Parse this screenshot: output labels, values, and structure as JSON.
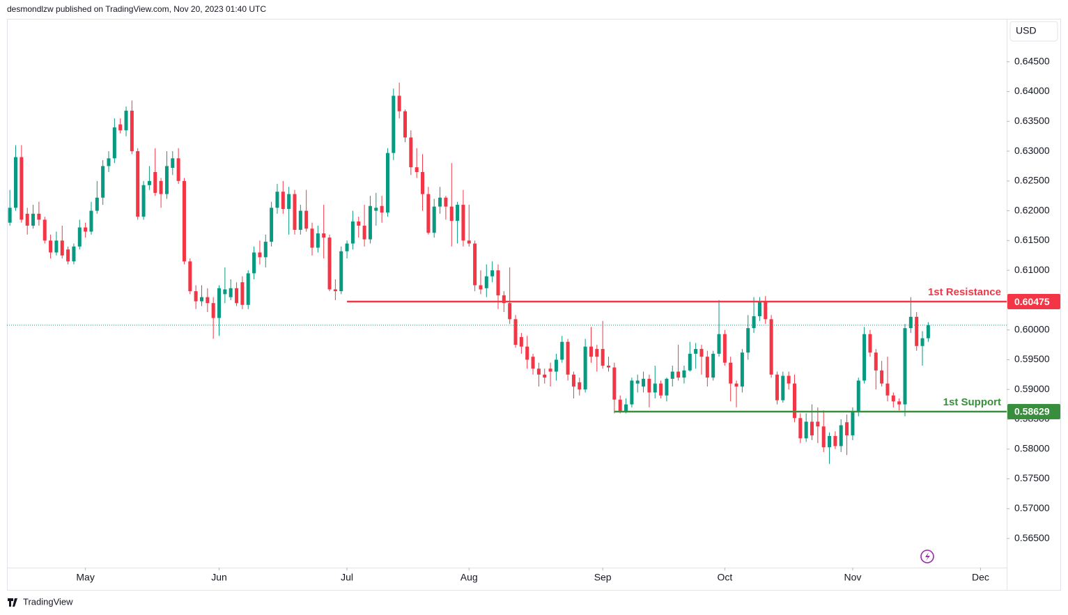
{
  "header": {
    "text": "desmondlzw published on TradingView.com, Nov 20, 2023 01:40 UTC"
  },
  "footer": {
    "brand": "TradingView"
  },
  "chart_data": {
    "type": "candlestick",
    "currency": "USD",
    "up_color": "#089981",
    "down_color": "#f23645",
    "xlim": [
      -0.5,
      171.5
    ],
    "xticks": [
      {
        "value": 13,
        "label": "May"
      },
      {
        "value": 36,
        "label": "Jun"
      },
      {
        "value": 58,
        "label": "Jul"
      },
      {
        "value": 79,
        "label": "Aug"
      },
      {
        "value": 102,
        "label": "Sep"
      },
      {
        "value": 123,
        "label": "Oct"
      },
      {
        "value": 145,
        "label": "Nov"
      },
      {
        "value": 167,
        "label": "Dec"
      }
    ],
    "ylim": [
      0.5601,
      0.6521
    ],
    "yticks": [
      {
        "value": 0.565,
        "label": "0.56500"
      },
      {
        "value": 0.57,
        "label": "0.57000"
      },
      {
        "value": 0.575,
        "label": "0.57500"
      },
      {
        "value": 0.58,
        "label": "0.58000"
      },
      {
        "value": 0.585,
        "label": "0.58500"
      },
      {
        "value": 0.59,
        "label": "0.59000"
      },
      {
        "value": 0.595,
        "label": "0.59500"
      },
      {
        "value": 0.6,
        "label": "0.60000"
      },
      {
        "value": 0.605,
        "label": "0.60500"
      },
      {
        "value": 0.61,
        "label": "0.61000"
      },
      {
        "value": 0.615,
        "label": "0.61500"
      },
      {
        "value": 0.62,
        "label": "0.62000"
      },
      {
        "value": 0.625,
        "label": "0.62500"
      },
      {
        "value": 0.63,
        "label": "0.63000"
      },
      {
        "value": 0.635,
        "label": "0.63500"
      },
      {
        "value": 0.64,
        "label": "0.64000"
      },
      {
        "value": 0.645,
        "label": "0.64500"
      }
    ],
    "levels": [
      {
        "name": "1st Resistance",
        "value": 0.60475,
        "start": 58,
        "color": "#f23645"
      },
      {
        "name": "1st Support",
        "value": 0.58629,
        "start": 104,
        "color": "#388e3c"
      }
    ],
    "ohlc": [
      [
        0.618,
        0.6235,
        0.6175,
        0.6205
      ],
      [
        0.6205,
        0.631,
        0.62,
        0.629
      ],
      [
        0.629,
        0.631,
        0.618,
        0.6185
      ],
      [
        0.6195,
        0.6205,
        0.616,
        0.6175
      ],
      [
        0.6175,
        0.621,
        0.617,
        0.6195
      ],
      [
        0.6195,
        0.6215,
        0.6175,
        0.6185
      ],
      [
        0.6185,
        0.619,
        0.6145,
        0.615
      ],
      [
        0.615,
        0.616,
        0.612,
        0.613
      ],
      [
        0.613,
        0.6165,
        0.6125,
        0.615
      ],
      [
        0.615,
        0.6175,
        0.612,
        0.6125
      ],
      [
        0.6135,
        0.614,
        0.611,
        0.6115
      ],
      [
        0.6115,
        0.6145,
        0.611,
        0.614
      ],
      [
        0.614,
        0.6185,
        0.6135,
        0.6172
      ],
      [
        0.6172,
        0.618,
        0.6155,
        0.6165
      ],
      [
        0.6165,
        0.6215,
        0.616,
        0.62
      ],
      [
        0.62,
        0.625,
        0.6195,
        0.6222
      ],
      [
        0.6222,
        0.6285,
        0.621,
        0.6275
      ],
      [
        0.6275,
        0.63,
        0.6265,
        0.6288
      ],
      [
        0.6288,
        0.6355,
        0.628,
        0.634
      ],
      [
        0.6345,
        0.6355,
        0.633,
        0.6335
      ],
      [
        0.6335,
        0.6375,
        0.6325,
        0.6368
      ],
      [
        0.6368,
        0.6385,
        0.6295,
        0.63
      ],
      [
        0.63,
        0.6305,
        0.6185,
        0.619
      ],
      [
        0.619,
        0.625,
        0.6185,
        0.6243
      ],
      [
        0.6243,
        0.6275,
        0.6235,
        0.625
      ],
      [
        0.6265,
        0.6305,
        0.6225,
        0.623
      ],
      [
        0.625,
        0.6255,
        0.6205,
        0.6228
      ],
      [
        0.6228,
        0.63,
        0.622,
        0.6275
      ],
      [
        0.6272,
        0.63,
        0.626,
        0.6288
      ],
      [
        0.6288,
        0.6305,
        0.6245,
        0.625
      ],
      [
        0.625,
        0.6255,
        0.611,
        0.6115
      ],
      [
        0.6115,
        0.612,
        0.606,
        0.6065
      ],
      [
        0.6065,
        0.6075,
        0.6035,
        0.6048
      ],
      [
        0.6048,
        0.6075,
        0.604,
        0.6055
      ],
      [
        0.6055,
        0.607,
        0.603,
        0.6045
      ],
      [
        0.6045,
        0.6055,
        0.5985,
        0.602
      ],
      [
        0.602,
        0.6075,
        0.599,
        0.607
      ],
      [
        0.606,
        0.6105,
        0.6045,
        0.6068
      ],
      [
        0.6055,
        0.6085,
        0.605,
        0.607
      ],
      [
        0.607,
        0.608,
        0.604,
        0.6045
      ],
      [
        0.608,
        0.609,
        0.6035,
        0.6042
      ],
      [
        0.6042,
        0.61,
        0.6035,
        0.6095
      ],
      [
        0.6095,
        0.614,
        0.6085,
        0.613
      ],
      [
        0.613,
        0.615,
        0.611,
        0.6122
      ],
      [
        0.6122,
        0.616,
        0.6105,
        0.6148
      ],
      [
        0.6148,
        0.6215,
        0.614,
        0.6205
      ],
      [
        0.6205,
        0.6245,
        0.6195,
        0.6232
      ],
      [
        0.6232,
        0.625,
        0.6195,
        0.6203
      ],
      [
        0.6203,
        0.624,
        0.616,
        0.6228
      ],
      [
        0.6228,
        0.6235,
        0.616,
        0.6168
      ],
      [
        0.6168,
        0.621,
        0.616,
        0.62
      ],
      [
        0.62,
        0.6235,
        0.6165,
        0.617
      ],
      [
        0.617,
        0.618,
        0.6125,
        0.6138
      ],
      [
        0.6138,
        0.6175,
        0.613,
        0.6162
      ],
      [
        0.6162,
        0.621,
        0.612,
        0.6155
      ],
      [
        0.6155,
        0.616,
        0.6065,
        0.6068
      ],
      [
        0.6068,
        0.6085,
        0.605,
        0.6065
      ],
      [
        0.6065,
        0.614,
        0.606,
        0.6132
      ],
      [
        0.6132,
        0.615,
        0.612,
        0.6145
      ],
      [
        0.6145,
        0.62,
        0.6135,
        0.6182
      ],
      [
        0.6182,
        0.619,
        0.6155,
        0.6175
      ],
      [
        0.6175,
        0.621,
        0.614,
        0.6152
      ],
      [
        0.6152,
        0.6225,
        0.6145,
        0.6208
      ],
      [
        0.62,
        0.623,
        0.6175,
        0.6205
      ],
      [
        0.6208,
        0.6225,
        0.618,
        0.6197
      ],
      [
        0.6197,
        0.6305,
        0.619,
        0.6297
      ],
      [
        0.6297,
        0.6405,
        0.6285,
        0.6393
      ],
      [
        0.6393,
        0.6415,
        0.6355,
        0.6367
      ],
      [
        0.6367,
        0.637,
        0.6315,
        0.6323
      ],
      [
        0.6323,
        0.6335,
        0.626,
        0.6273
      ],
      [
        0.6273,
        0.6305,
        0.6255,
        0.6265
      ],
      [
        0.6265,
        0.6295,
        0.62,
        0.6228
      ],
      [
        0.6228,
        0.624,
        0.616,
        0.6163
      ],
      [
        0.6163,
        0.622,
        0.6155,
        0.6207
      ],
      [
        0.6207,
        0.624,
        0.6195,
        0.6222
      ],
      [
        0.6222,
        0.6225,
        0.6185,
        0.6207
      ],
      [
        0.6207,
        0.628,
        0.614,
        0.6183
      ],
      [
        0.6183,
        0.6215,
        0.6145,
        0.621
      ],
      [
        0.621,
        0.6235,
        0.614,
        0.615
      ],
      [
        0.615,
        0.621,
        0.614,
        0.6145
      ],
      [
        0.6145,
        0.615,
        0.6065,
        0.6075
      ],
      [
        0.6075,
        0.61,
        0.606,
        0.6068
      ],
      [
        0.607,
        0.611,
        0.6055,
        0.609
      ],
      [
        0.609,
        0.6115,
        0.608,
        0.61
      ],
      [
        0.61,
        0.611,
        0.6035,
        0.6058
      ],
      [
        0.6058,
        0.6065,
        0.603,
        0.6045
      ],
      [
        0.6045,
        0.6105,
        0.601,
        0.6018
      ],
      [
        0.6018,
        0.6025,
        0.597,
        0.5975
      ],
      [
        0.5988,
        0.5995,
        0.596,
        0.5972
      ],
      [
        0.5972,
        0.599,
        0.5935,
        0.595
      ],
      [
        0.5955,
        0.596,
        0.5925,
        0.5935
      ],
      [
        0.5935,
        0.5945,
        0.5905,
        0.5925
      ],
      [
        0.5925,
        0.5935,
        0.591,
        0.592
      ],
      [
        0.5935,
        0.5945,
        0.5905,
        0.593
      ],
      [
        0.593,
        0.596,
        0.5915,
        0.595
      ],
      [
        0.595,
        0.599,
        0.5945,
        0.598
      ],
      [
        0.598,
        0.5985,
        0.5915,
        0.5925
      ],
      [
        0.5925,
        0.593,
        0.5885,
        0.5905
      ],
      [
        0.5912,
        0.592,
        0.589,
        0.59
      ],
      [
        0.59,
        0.5985,
        0.5895,
        0.5972
      ],
      [
        0.5972,
        0.6005,
        0.5945,
        0.5955
      ],
      [
        0.5968,
        0.5975,
        0.593,
        0.5955
      ],
      [
        0.5968,
        0.6015,
        0.5935,
        0.594
      ],
      [
        0.594,
        0.5955,
        0.593,
        0.5937
      ],
      [
        0.5937,
        0.5945,
        0.586,
        0.5883
      ],
      [
        0.5883,
        0.589,
        0.586,
        0.5862
      ],
      [
        0.5862,
        0.5885,
        0.586,
        0.5875
      ],
      [
        0.5875,
        0.592,
        0.587,
        0.5915
      ],
      [
        0.591,
        0.5925,
        0.5895,
        0.5915
      ],
      [
        0.5905,
        0.593,
        0.5895,
        0.5918
      ],
      [
        0.5918,
        0.5925,
        0.587,
        0.5895
      ],
      [
        0.5895,
        0.594,
        0.5885,
        0.591
      ],
      [
        0.591,
        0.5915,
        0.5885,
        0.589
      ],
      [
        0.589,
        0.592,
        0.588,
        0.5918
      ],
      [
        0.5918,
        0.594,
        0.5905,
        0.593
      ],
      [
        0.593,
        0.5975,
        0.5915,
        0.592
      ],
      [
        0.592,
        0.594,
        0.591,
        0.5932
      ],
      [
        0.5932,
        0.598,
        0.593,
        0.596
      ],
      [
        0.596,
        0.5978,
        0.5935,
        0.5968
      ],
      [
        0.5968,
        0.5975,
        0.5925,
        0.5955
      ],
      [
        0.5955,
        0.5965,
        0.5905,
        0.592
      ],
      [
        0.592,
        0.5965,
        0.5915,
        0.596
      ],
      [
        0.596,
        0.605,
        0.5955,
        0.5993
      ],
      [
        0.5993,
        0.6,
        0.594,
        0.5945
      ],
      [
        0.5945,
        0.5955,
        0.588,
        0.591
      ],
      [
        0.591,
        0.5915,
        0.587,
        0.5905
      ],
      [
        0.5905,
        0.5968,
        0.5895,
        0.5962
      ],
      [
        0.5962,
        0.6025,
        0.595,
        0.6003
      ],
      [
        0.6003,
        0.6055,
        0.5995,
        0.6023
      ],
      [
        0.6023,
        0.6055,
        0.6015,
        0.6047
      ],
      [
        0.6047,
        0.6057,
        0.601,
        0.6018
      ],
      [
        0.6018,
        0.6025,
        0.592,
        0.5925
      ],
      [
        0.5925,
        0.593,
        0.5875,
        0.5882
      ],
      [
        0.5882,
        0.593,
        0.5878,
        0.5923
      ],
      [
        0.5923,
        0.593,
        0.59,
        0.591
      ],
      [
        0.591,
        0.5925,
        0.5845,
        0.5852
      ],
      [
        0.5852,
        0.586,
        0.581,
        0.5818
      ],
      [
        0.5818,
        0.586,
        0.5812,
        0.5846
      ],
      [
        0.5846,
        0.5875,
        0.5815,
        0.5823
      ],
      [
        0.5846,
        0.587,
        0.581,
        0.5838
      ],
      [
        0.5838,
        0.5865,
        0.5795,
        0.5803
      ],
      [
        0.5803,
        0.5828,
        0.5775,
        0.5822
      ],
      [
        0.5822,
        0.583,
        0.58,
        0.5805
      ],
      [
        0.5805,
        0.585,
        0.5795,
        0.584
      ],
      [
        0.5845,
        0.5858,
        0.579,
        0.5823
      ],
      [
        0.5823,
        0.587,
        0.5815,
        0.5863
      ],
      [
        0.5863,
        0.592,
        0.5855,
        0.5915
      ],
      [
        0.5915,
        0.6005,
        0.591,
        0.5993
      ],
      [
        0.5993,
        0.6,
        0.5955,
        0.5962
      ],
      [
        0.5962,
        0.5968,
        0.59,
        0.5932
      ],
      [
        0.5932,
        0.5948,
        0.5905,
        0.591
      ],
      [
        0.591,
        0.5955,
        0.588,
        0.589
      ],
      [
        0.589,
        0.5895,
        0.587,
        0.588
      ],
      [
        0.588,
        0.5885,
        0.5865,
        0.5875
      ],
      [
        0.5875,
        0.601,
        0.5855,
        0.6003
      ],
      [
        0.6003,
        0.6055,
        0.5995,
        0.6022
      ],
      [
        0.6022,
        0.603,
        0.5965,
        0.5973
      ],
      [
        0.5973,
        0.5998,
        0.594,
        0.5986
      ],
      [
        0.5986,
        0.6013,
        0.598,
        0.6008
      ]
    ]
  }
}
